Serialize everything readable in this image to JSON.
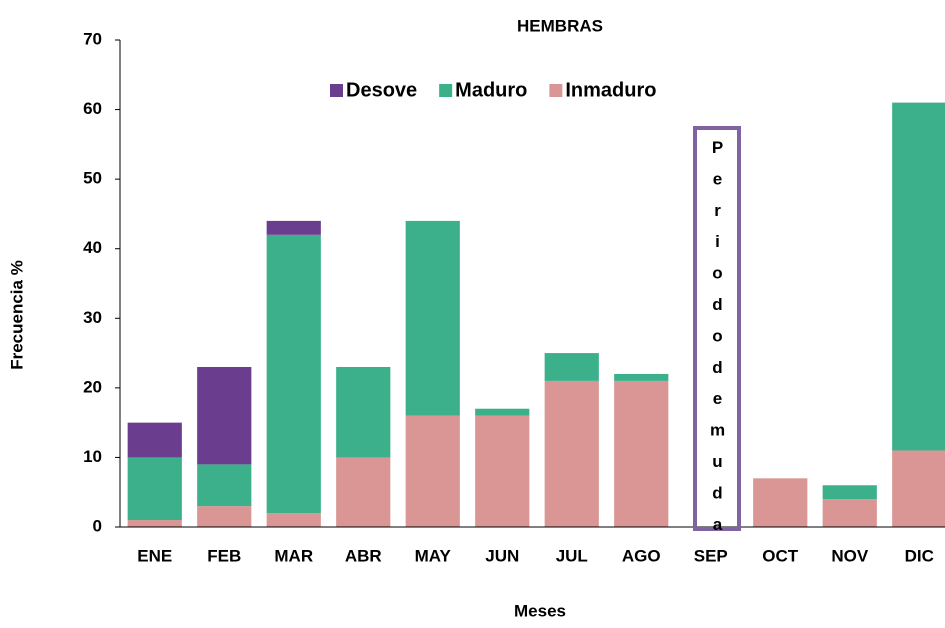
{
  "chart_data": {
    "type": "stacked_bar",
    "title": "HEMBRAS",
    "x_label": "Meses",
    "y_label": "Frecuencia %",
    "categories": [
      "ENE",
      "FEB",
      "MAR",
      "ABR",
      "MAY",
      "JUN",
      "JUL",
      "AGO",
      "SEP",
      "OCT",
      "NOV",
      "DIC"
    ],
    "series": [
      {
        "name": "Desove",
        "color": "#6a3d8f",
        "values": [
          5,
          14,
          2,
          0,
          0,
          0,
          0,
          0,
          null,
          0,
          0,
          0
        ]
      },
      {
        "name": "Maduro",
        "color": "#3cb08a",
        "values": [
          9,
          6,
          40,
          13,
          28,
          1,
          4,
          1,
          null,
          0,
          2,
          50
        ]
      },
      {
        "name": "Inmaduro",
        "color": "#d99694",
        "values": [
          1,
          3,
          2,
          10,
          16,
          16,
          21,
          21,
          null,
          7,
          4,
          11
        ]
      }
    ],
    "annotation": "Periododemuda",
    "annotation_color": "#8064a2",
    "ylim": [
      0,
      70
    ],
    "yticks": [
      0,
      10,
      20,
      30,
      40,
      50,
      60,
      70
    ],
    "grid": false,
    "legend": "top"
  }
}
